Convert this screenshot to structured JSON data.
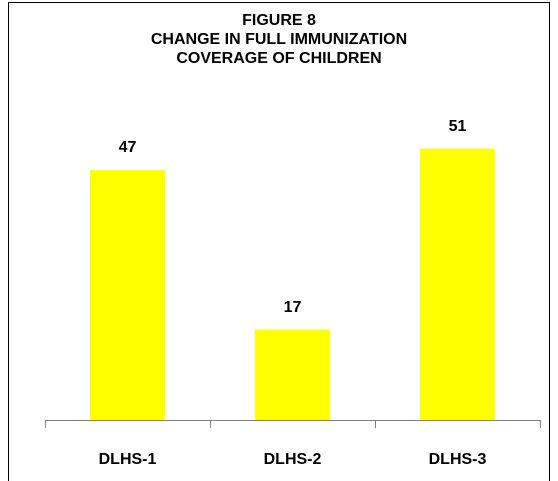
{
  "chart_data": {
    "type": "bar",
    "title": [
      "FIGURE 8",
      "CHANGE IN FULL IMMUNIZATION",
      "COVERAGE OF CHILDREN"
    ],
    "categories": [
      "DLHS-1",
      "DLHS-2",
      "DLHS-3"
    ],
    "values": [
      47,
      17,
      51
    ],
    "color": "#ffff00"
  }
}
